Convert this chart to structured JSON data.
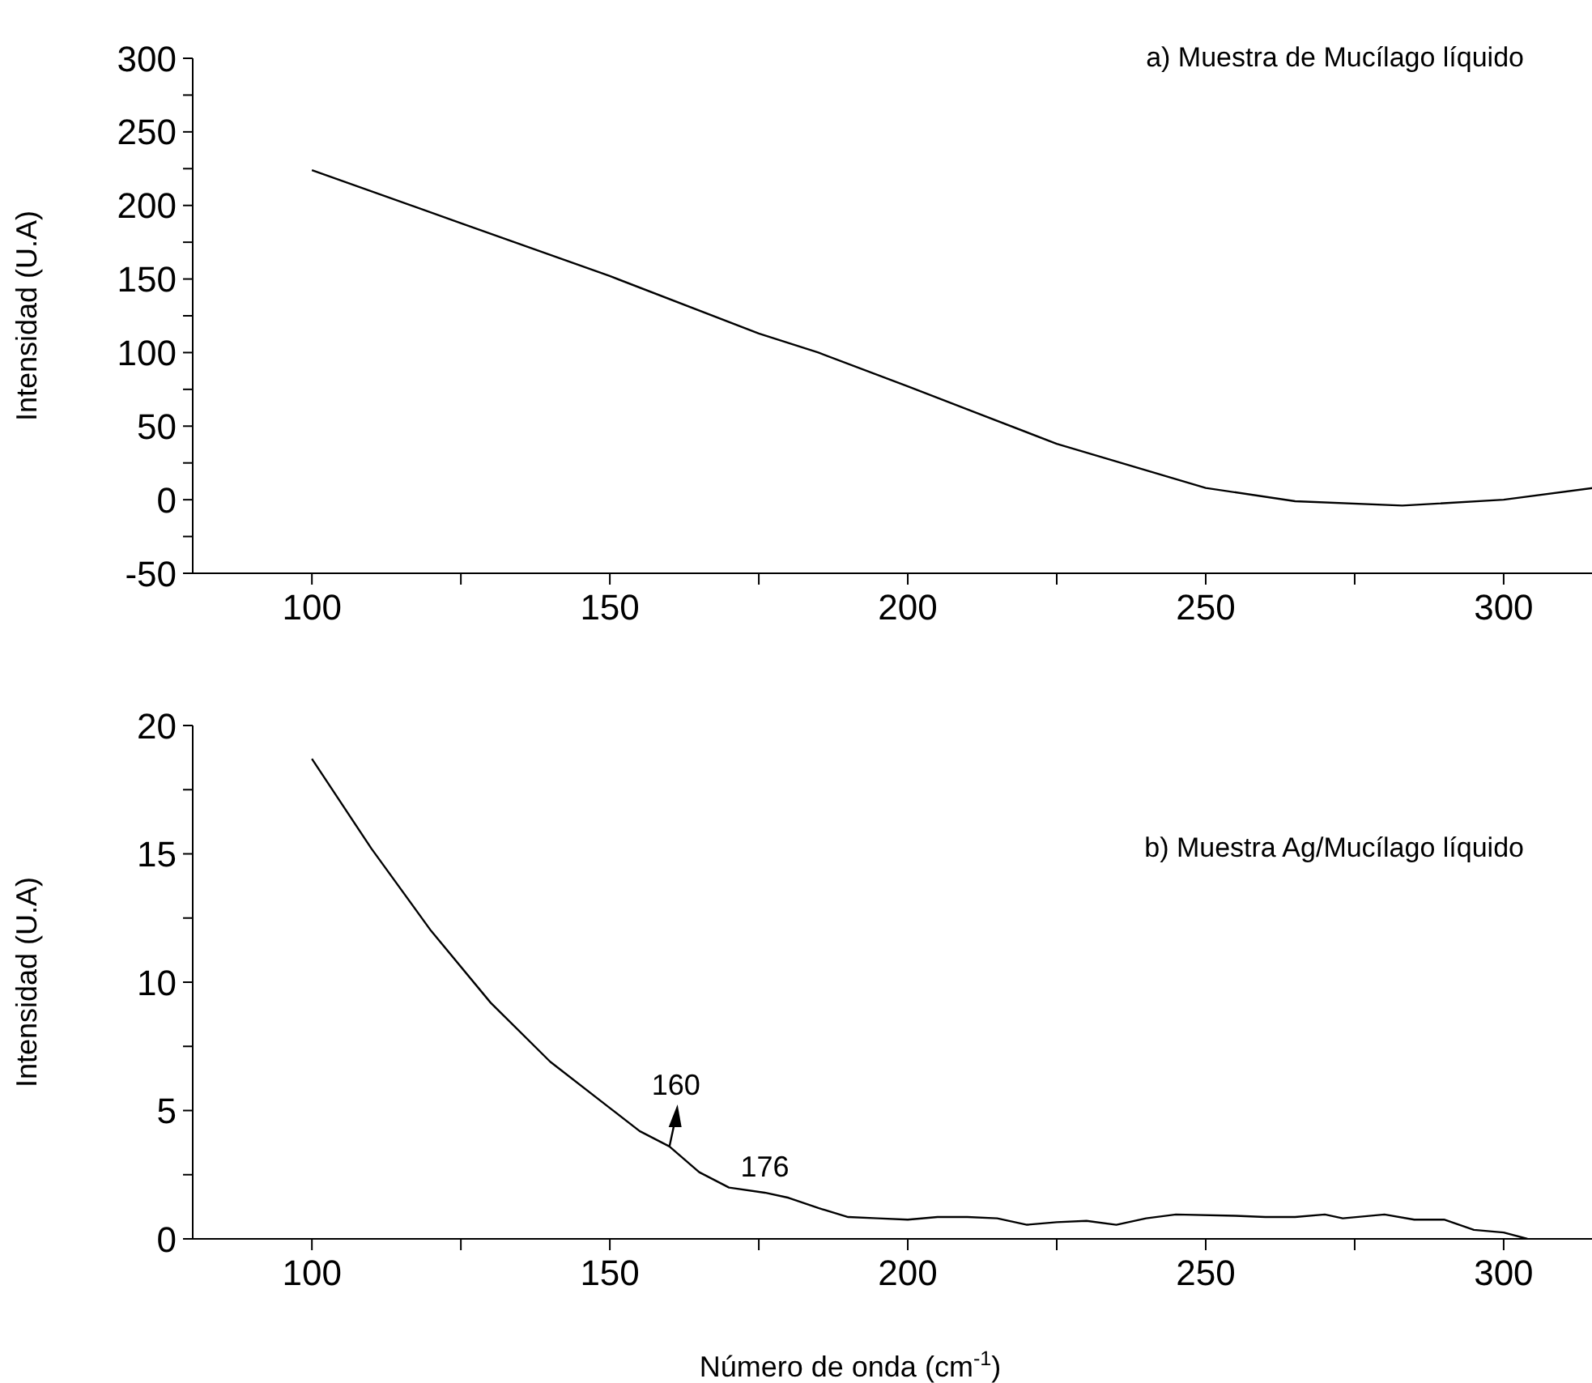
{
  "chart_data": [
    {
      "type": "line",
      "ylabel": "Intensidad (U.A)",
      "annotations": [
        "a) Muestra de Mucílago líquido"
      ],
      "xlim": [
        80,
        317
      ],
      "ylim": [
        -50,
        300
      ],
      "xticks": [
        100,
        {
          "value": 125,
          "label": null
        },
        150,
        {
          "value": 175,
          "label": null
        },
        200,
        {
          "value": 225,
          "label": null
        },
        250,
        {
          "value": 275,
          "label": null
        },
        300
      ],
      "yticks": [
        -50,
        {
          "value": -25,
          "label": null
        },
        0,
        {
          "value": 25,
          "label": null
        },
        50,
        {
          "value": 75,
          "label": null
        },
        100,
        {
          "value": 125,
          "label": null
        },
        150,
        {
          "value": 175,
          "label": null
        },
        200,
        {
          "value": 225,
          "label": null
        },
        250,
        {
          "value": 275,
          "label": null
        },
        300
      ],
      "grid": false,
      "marker": "none",
      "line_style": "solid",
      "series": [
        {
          "color": "#000000",
          "x": [
            100,
            125,
            150,
            175,
            185,
            200,
            225,
            250,
            265,
            283,
            300,
            317
          ],
          "values": [
            224,
            188,
            152,
            113,
            100,
            77,
            38,
            8,
            -1,
            -4,
            0,
            9
          ]
        }
      ]
    },
    {
      "type": "line",
      "xlabel": "Número de onda (cm$^{-1}$)",
      "ylabel": "Intensidad (U.A)",
      "annotations": [
        "b) Muestra Ag/Mucílago líquido",
        {
          "text": "160",
          "x": 160,
          "y": 3.6
        },
        {
          "text": "176",
          "x": 176,
          "y": 1.8
        }
      ],
      "xlim": [
        80,
        317
      ],
      "ylim": [
        0,
        20
      ],
      "xticks": [
        100,
        {
          "value": 125,
          "label": null
        },
        150,
        {
          "value": 175,
          "label": null
        },
        200,
        {
          "value": 225,
          "label": null
        },
        250,
        {
          "value": 275,
          "label": null
        },
        300
      ],
      "yticks": [
        0,
        {
          "value": 2.5,
          "label": null
        },
        5,
        {
          "value": 7.5,
          "label": null
        },
        10,
        {
          "value": 12.5,
          "label": null
        },
        15,
        {
          "value": 17.5,
          "label": null
        },
        20
      ],
      "grid": false,
      "marker": "none",
      "line_style": "solid",
      "series": [
        {
          "color": "#000000",
          "x": [
            100,
            110,
            120,
            130,
            140,
            150,
            155,
            160,
            165,
            170,
            176,
            180,
            185,
            190,
            195,
            200,
            205,
            210,
            215,
            220,
            225,
            230,
            235,
            240,
            245,
            255,
            260,
            265,
            270,
            273,
            280,
            285,
            290,
            295,
            300,
            304
          ],
          "values": [
            18.7,
            15.2,
            12,
            9.2,
            6.9,
            5.1,
            4.2,
            3.6,
            2.6,
            2.0,
            1.8,
            1.6,
            1.2,
            0.85,
            0.8,
            0.75,
            0.85,
            0.85,
            0.8,
            0.55,
            0.65,
            0.7,
            0.55,
            0.8,
            0.95,
            0.9,
            0.85,
            0.85,
            0.95,
            0.8,
            0.95,
            0.75,
            0.75,
            0.35,
            0.25,
            0
          ]
        }
      ]
    }
  ]
}
